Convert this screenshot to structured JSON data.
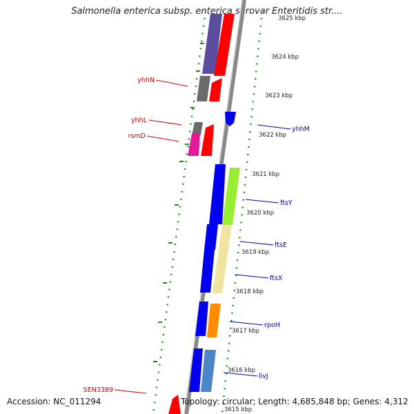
{
  "title": "Salmonella enterica subsp. enterica serovar Enteritidis str....",
  "footer": {
    "accession": "Accession: NC_011294",
    "summary": "Topology: circular; Length: 4,685,848 bp; Genes: 4,312"
  },
  "colors": {
    "backbone": "#8a8a8a",
    "ticks": "#1a8a1a",
    "label_red": "#cc0000",
    "label_blue": "#0000aa"
  },
  "kbp_labels": [
    "3625 kbp",
    "3624 kbp",
    "3623 kbp",
    "3622 kbp",
    "3621 kbp",
    "3620 kbp",
    "3619 kbp",
    "3618 kbp",
    "3617 kbp",
    "3616 kbp",
    "3615 kbp"
  ],
  "genes_left": [
    {
      "name": "yhhN",
      "color": "#cc0000"
    },
    {
      "name": "yhhL",
      "color": "#cc0000"
    },
    {
      "name": "rsmD",
      "color": "#cc0000"
    },
    {
      "name": "SEN3389",
      "color": "#cc0000"
    }
  ],
  "genes_right": [
    {
      "name": "yhhM",
      "color": "#0000aa"
    },
    {
      "name": "ftsY",
      "color": "#0000aa"
    },
    {
      "name": "ftsE",
      "color": "#0000aa"
    },
    {
      "name": "ftsX",
      "color": "#0000aa"
    },
    {
      "name": "rpoH",
      "color": "#0000aa"
    },
    {
      "name": "livJ",
      "color": "#0000aa"
    }
  ]
}
